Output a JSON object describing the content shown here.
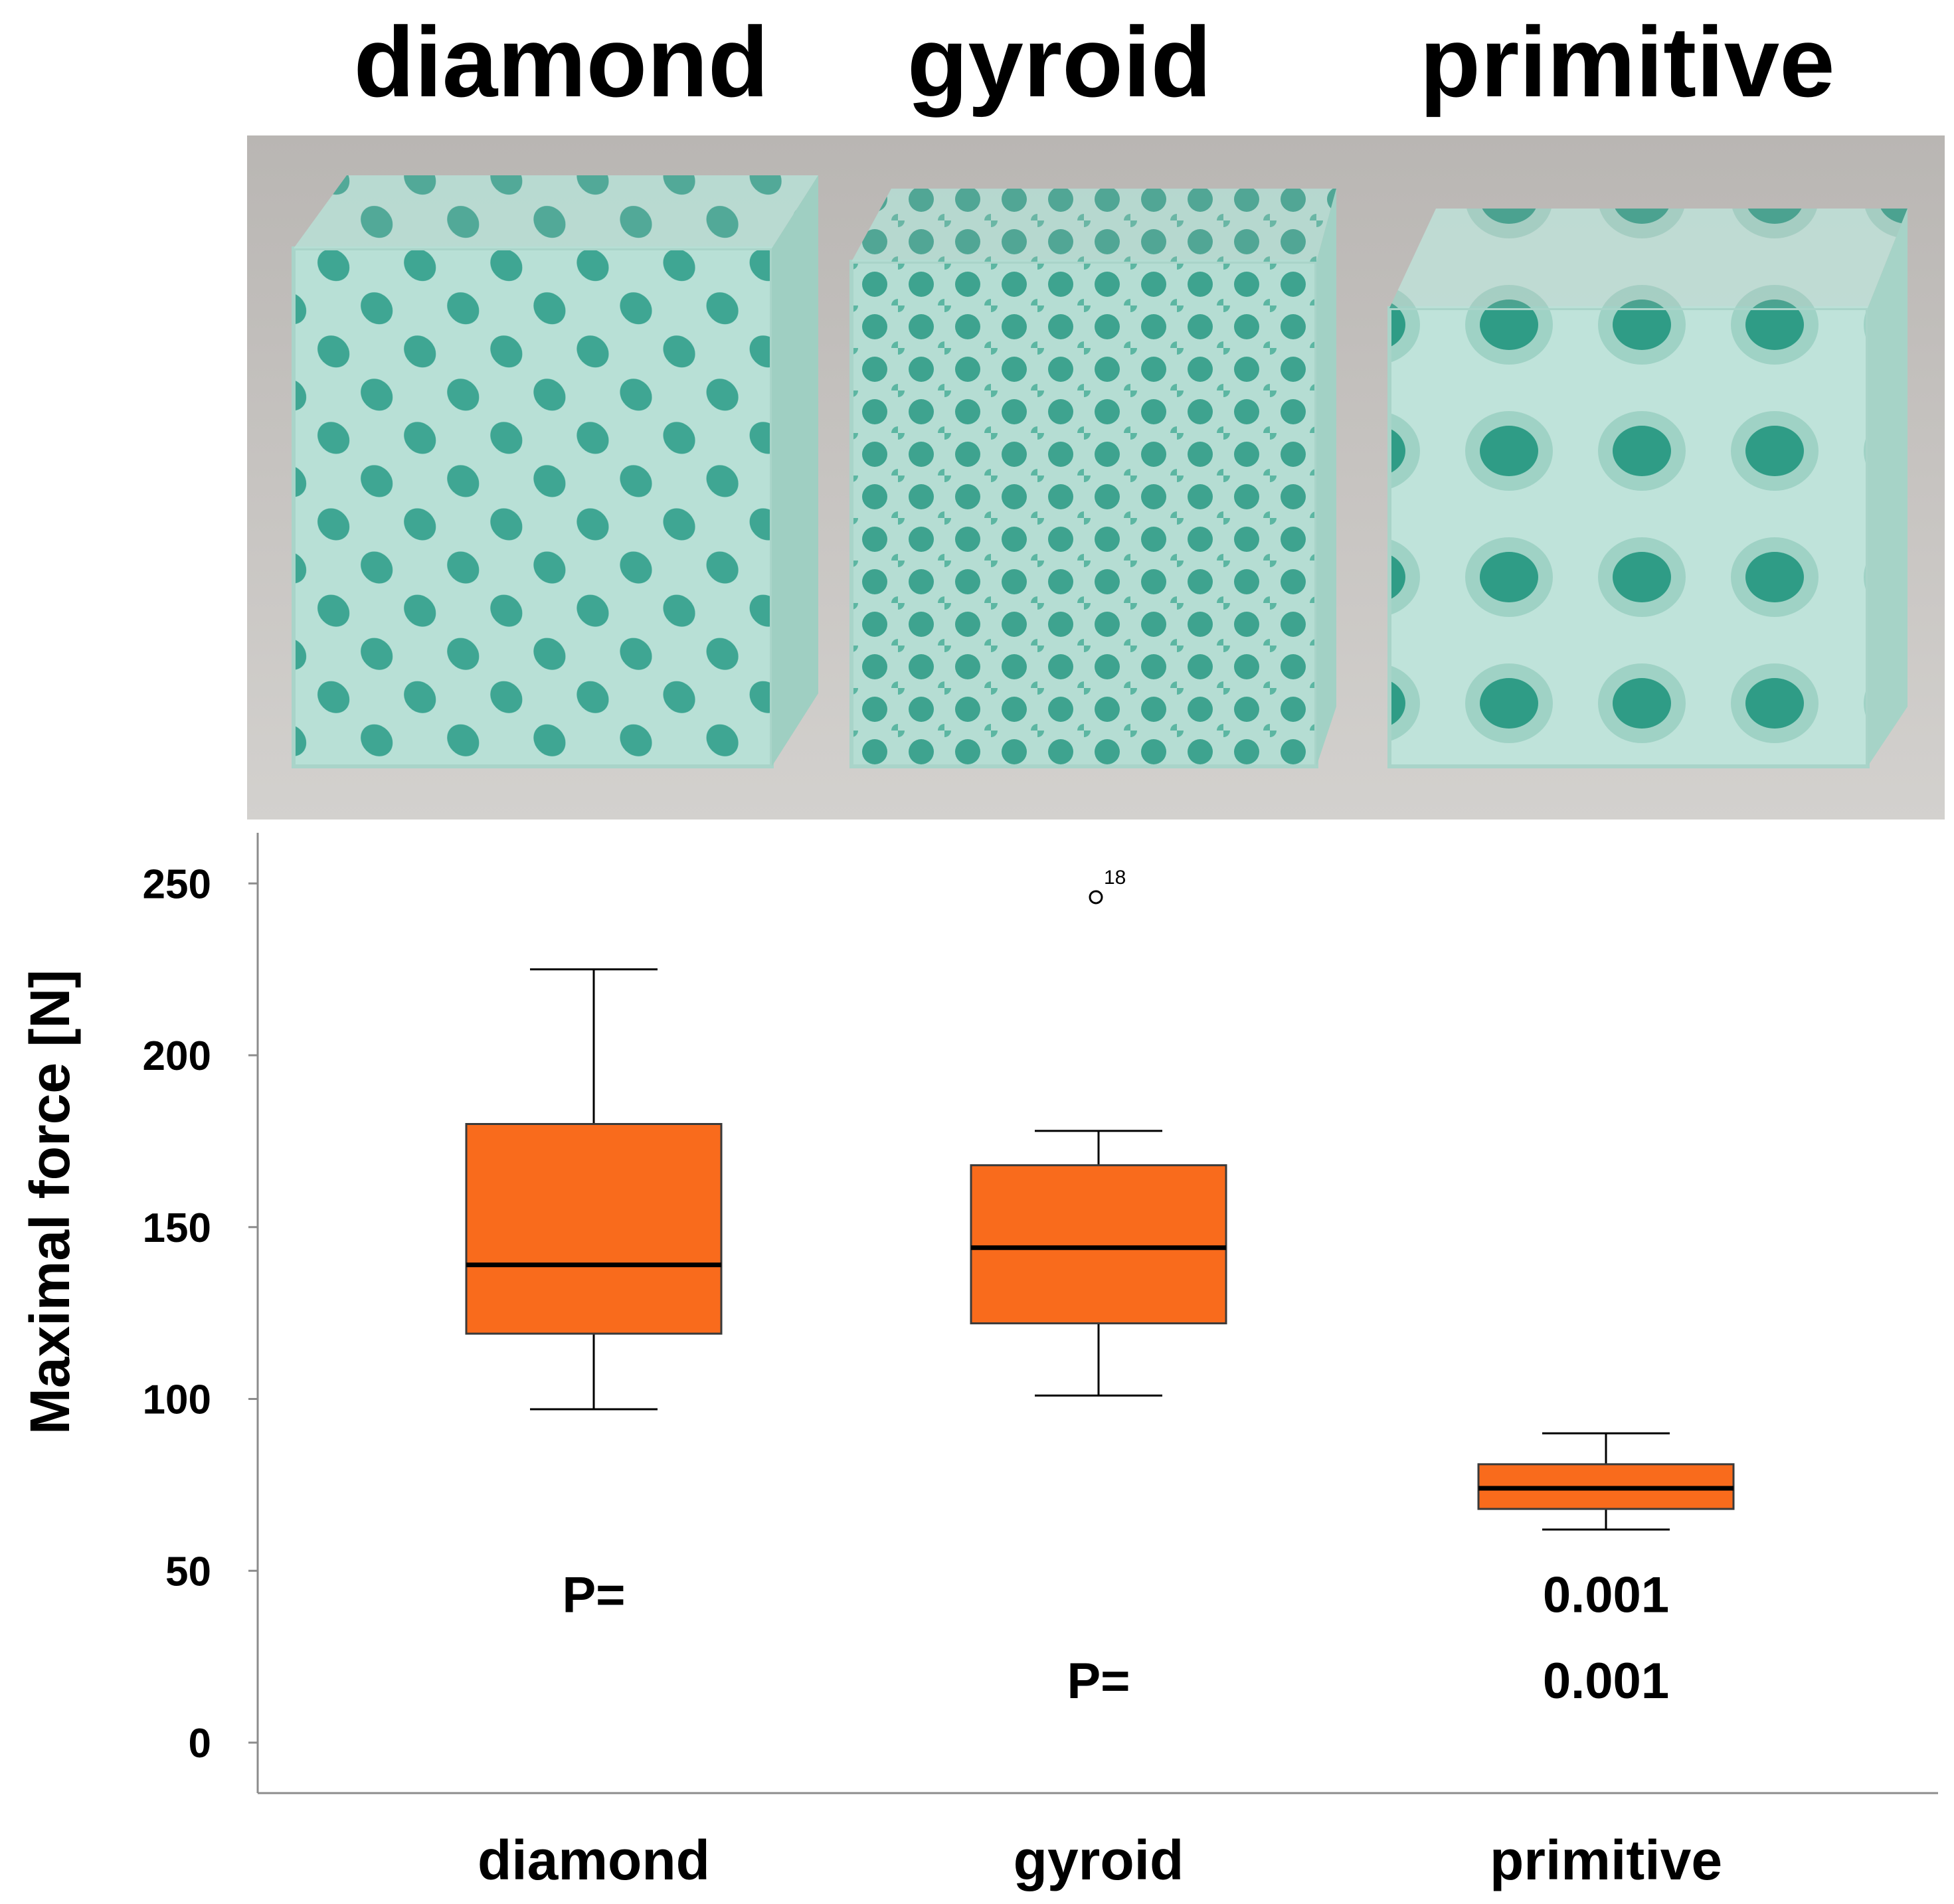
{
  "header": {
    "labels": [
      "diamond",
      "gyroid",
      "primitive"
    ]
  },
  "photo": {
    "specimens": [
      {
        "name": "diamond-lattice-cube",
        "color": "#b8e0d6"
      },
      {
        "name": "gyroid-lattice-cube",
        "color": "#b8e0d6"
      },
      {
        "name": "primitive-lattice-cube",
        "color": "#b8e0d6"
      }
    ],
    "background_color": "#c4c1be"
  },
  "chart_data": {
    "type": "boxplot",
    "title": "",
    "xlabel": "",
    "ylabel": "Maximal force [N]",
    "ylim": [
      -10,
      265
    ],
    "yticks": [
      0,
      50,
      100,
      150,
      200,
      250
    ],
    "categories": [
      "diamond",
      "gyroid",
      "primitive"
    ],
    "box_color": "#f96b1c",
    "boxes": [
      {
        "category": "diamond",
        "whisker_low": 97,
        "q1": 119,
        "median": 139,
        "q3": 180,
        "whisker_high": 225,
        "outliers": []
      },
      {
        "category": "gyroid",
        "whisker_low": 101,
        "q1": 122,
        "median": 144,
        "q3": 168,
        "whisker_high": 178,
        "outliers": [
          {
            "value": 246,
            "label": "18"
          }
        ]
      },
      {
        "category": "primitive",
        "whisker_low": 62,
        "q1": 68,
        "median": 74,
        "q3": 81,
        "whisker_high": 90,
        "outliers": []
      }
    ],
    "annotations": [
      {
        "text": "P=",
        "category": "diamond",
        "y": 43
      },
      {
        "text": "0.001",
        "category": "primitive",
        "y": 43
      },
      {
        "text": "P=",
        "category": "gyroid",
        "y": 18
      },
      {
        "text": "0.001",
        "category": "primitive",
        "y": 18
      }
    ]
  }
}
